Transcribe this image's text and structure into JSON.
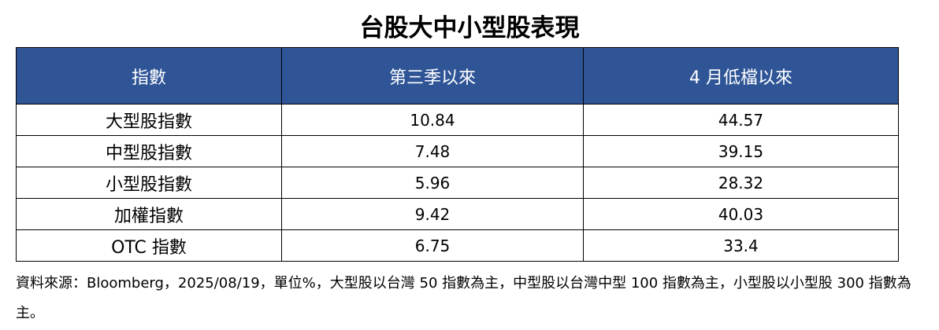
{
  "title": "台股大中小型股表現",
  "table": {
    "header": [
      "指數",
      "第三季以來",
      "4 月低檔以來"
    ],
    "rows": [
      [
        "大型股指數",
        10.84,
        44.57
      ],
      [
        "中型股指數",
        7.48,
        39.15
      ],
      [
        "小型股指數",
        5.96,
        28.32
      ],
      [
        "加權指數",
        9.42,
        40.03
      ],
      [
        "OTC 指數",
        6.75,
        33.4
      ]
    ]
  },
  "footnote": "資料來源：Bloomberg，2025/08/19，單位%，大型股以台灣 50 指數為主，中型股以台灣中型 100 指數為主，小型股以小型股 300 指數為主。"
}
